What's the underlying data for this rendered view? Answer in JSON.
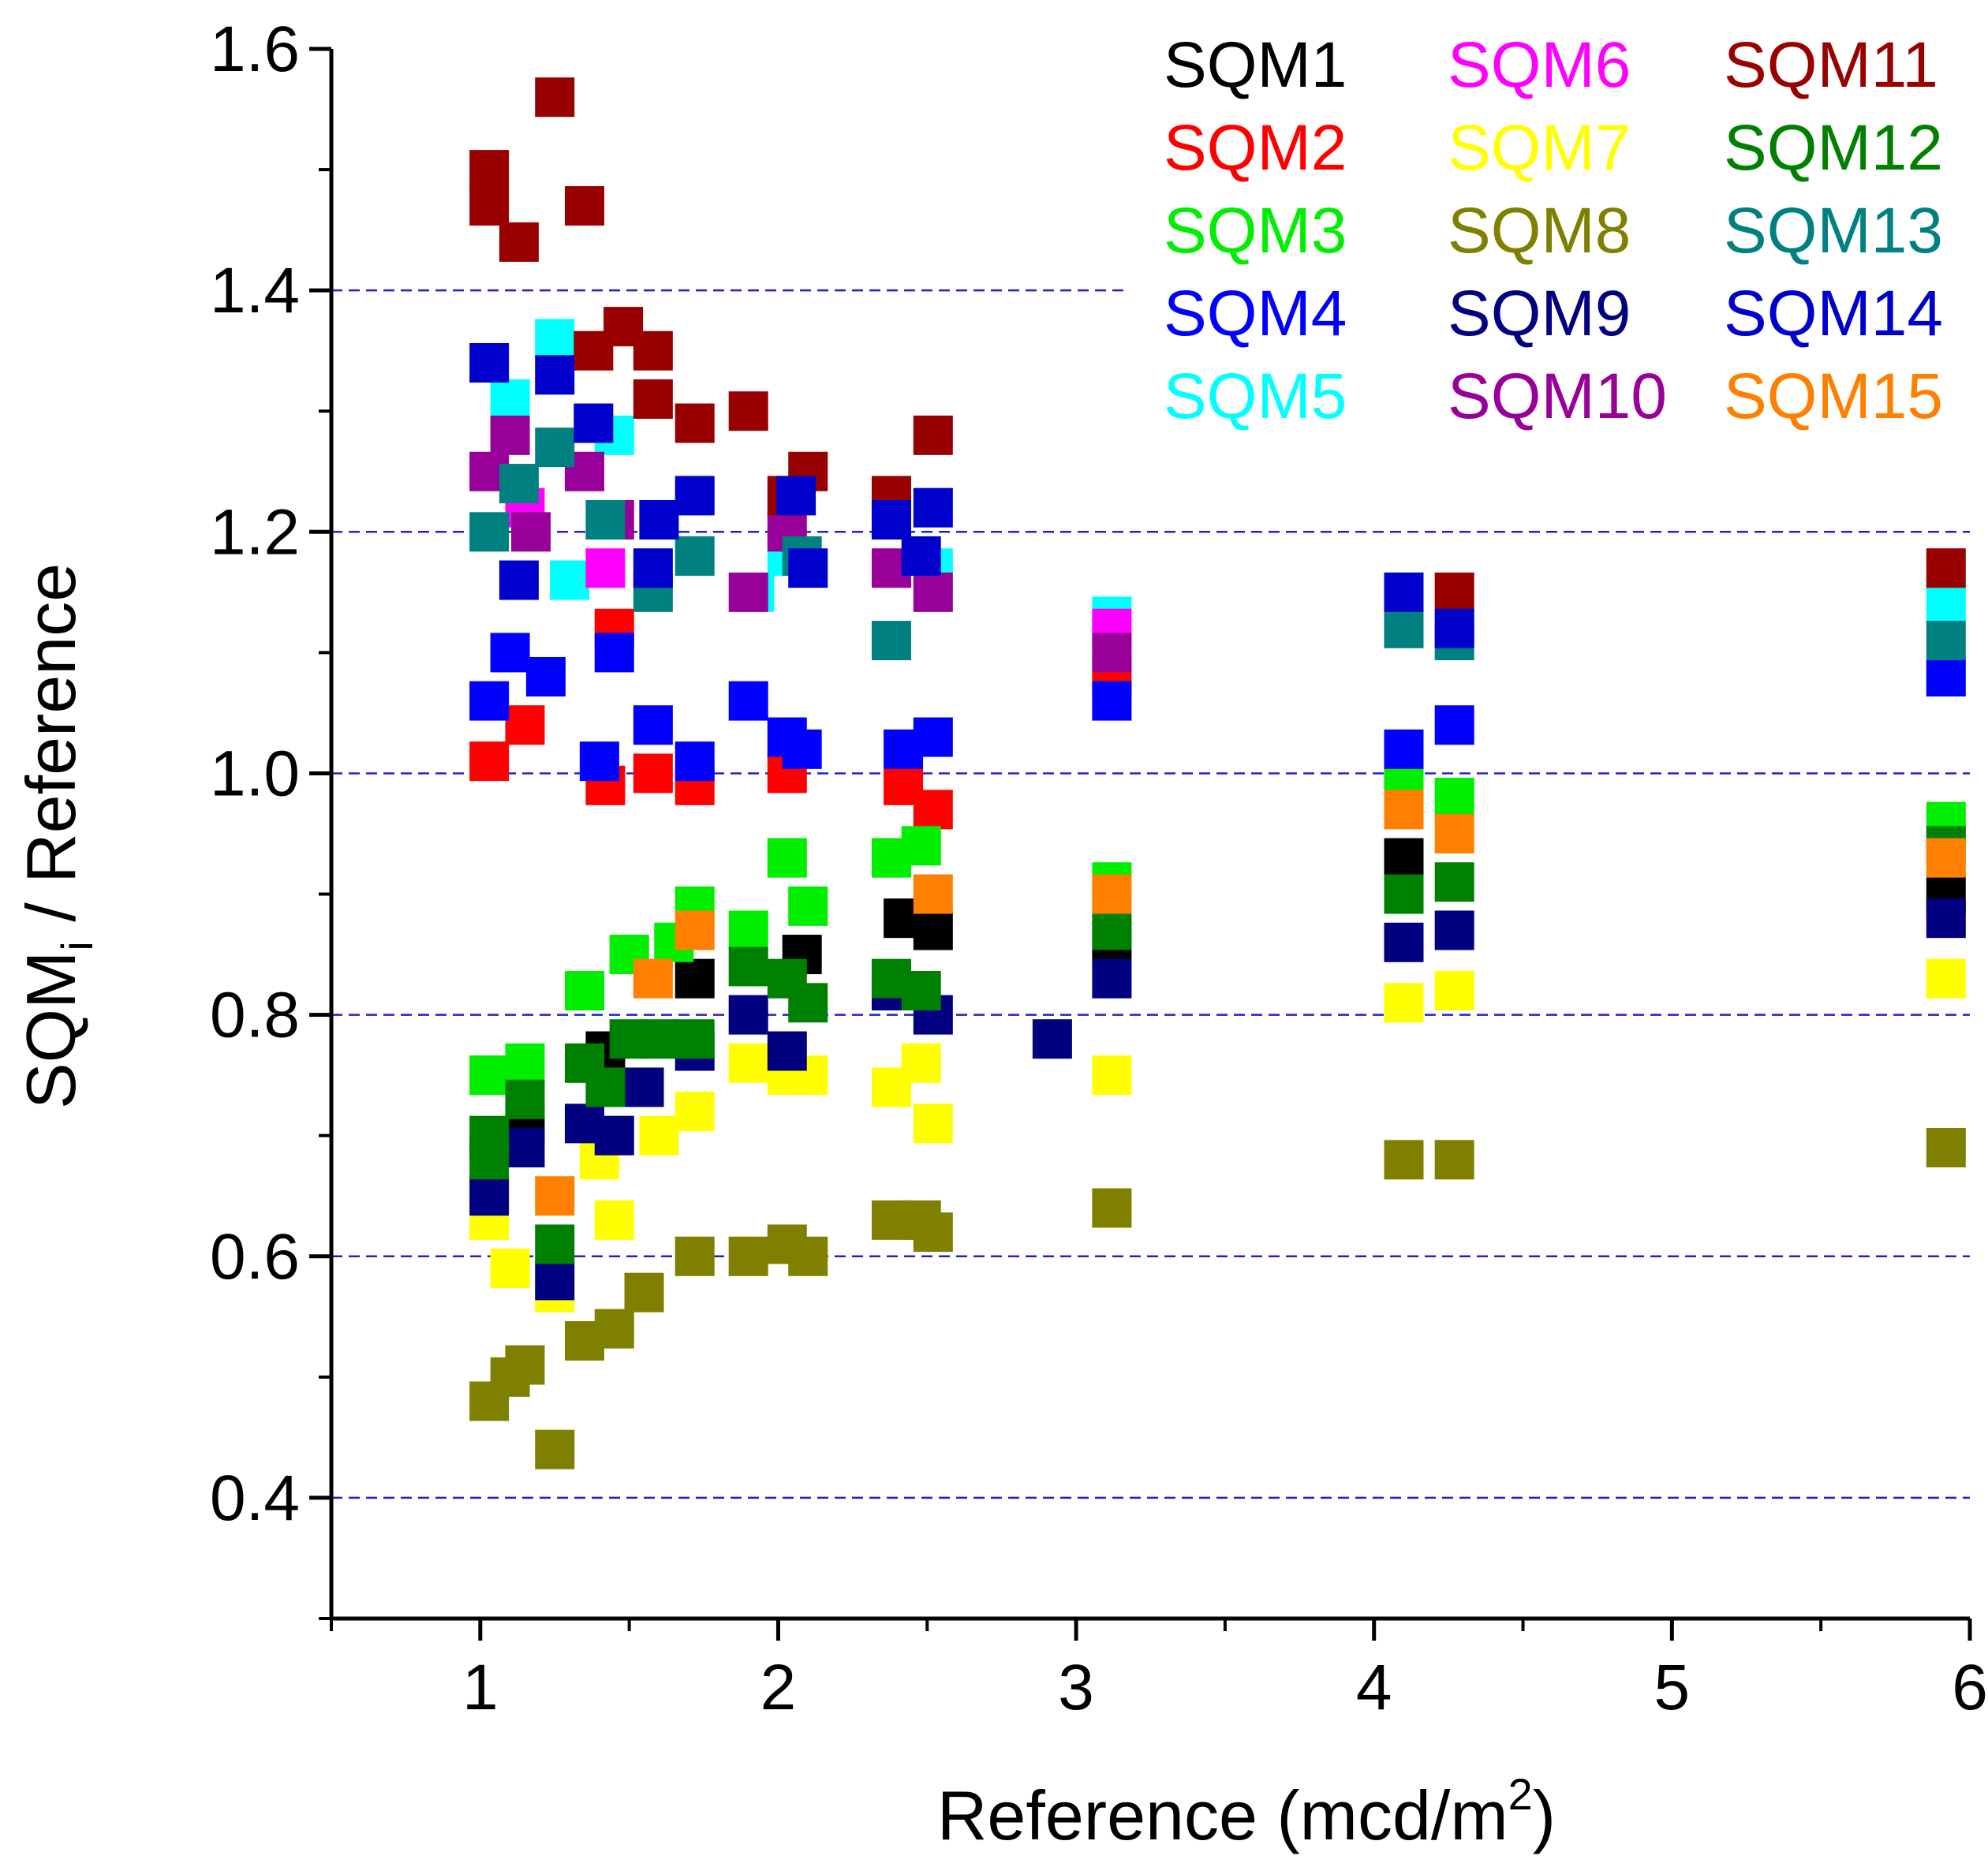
{
  "chart_data": {
    "type": "scatter",
    "title": "",
    "xlabel": "Reference (mcd/m",
    "xlabel_sup": "2",
    "xlabel_end": ")",
    "ylabel_main": "SQM",
    "ylabel_sub": "i",
    "ylabel_end": " / Reference",
    "xlim": [
      0.5,
      6.0
    ],
    "ylim": [
      0.3,
      1.6
    ],
    "xticks": [
      "1",
      "2",
      "3",
      "4",
      "5",
      "6"
    ],
    "yticks": [
      "0.4",
      "0.6",
      "0.8",
      "1.0",
      "1.2",
      "1.4",
      "1.6"
    ],
    "grid_y": [
      0.4,
      0.6,
      0.8,
      1.0,
      1.2,
      1.4
    ],
    "grid_color": "#2020d0",
    "legend_position": "top-right",
    "series": [
      {
        "name": "SQM1",
        "color": "#000000",
        "points": [
          [
            1.15,
            0.71
          ],
          [
            1.42,
            0.77
          ],
          [
            1.72,
            0.83
          ],
          [
            2.08,
            0.85
          ],
          [
            2.42,
            0.88
          ],
          [
            2.52,
            0.87
          ],
          [
            3.12,
            0.86
          ],
          [
            4.1,
            0.93
          ],
          [
            5.92,
            0.9
          ]
        ]
      },
      {
        "name": "SQM2",
        "color": "#ff0000",
        "points": [
          [
            1.03,
            1.01
          ],
          [
            1.15,
            1.04
          ],
          [
            1.42,
            0.99
          ],
          [
            1.58,
            1.0
          ],
          [
            1.72,
            0.99
          ],
          [
            2.03,
            1.0
          ],
          [
            2.42,
            0.99
          ],
          [
            2.52,
            0.97
          ],
          [
            3.12,
            1.08
          ],
          [
            4.1,
            1.0
          ],
          [
            1.45,
            1.12
          ]
        ]
      },
      {
        "name": "SQM3",
        "color": "#00ee00",
        "points": [
          [
            1.03,
            0.75
          ],
          [
            1.15,
            0.76
          ],
          [
            1.35,
            0.82
          ],
          [
            1.5,
            0.85
          ],
          [
            1.65,
            0.86
          ],
          [
            1.72,
            0.89
          ],
          [
            1.9,
            0.87
          ],
          [
            2.03,
            0.93
          ],
          [
            2.1,
            0.89
          ],
          [
            2.38,
            0.93
          ],
          [
            2.48,
            0.94
          ],
          [
            3.12,
            0.91
          ],
          [
            4.1,
            0.99
          ],
          [
            4.27,
            0.98
          ],
          [
            5.92,
            0.96
          ]
        ]
      },
      {
        "name": "SQM4",
        "color": "#0000ff",
        "points": [
          [
            1.03,
            1.06
          ],
          [
            1.1,
            1.1
          ],
          [
            1.22,
            1.08
          ],
          [
            1.4,
            1.01
          ],
          [
            1.45,
            1.1
          ],
          [
            1.58,
            1.04
          ],
          [
            1.72,
            1.01
          ],
          [
            1.9,
            1.06
          ],
          [
            2.03,
            1.03
          ],
          [
            2.08,
            1.02
          ],
          [
            2.42,
            1.02
          ],
          [
            2.52,
            1.03
          ],
          [
            3.12,
            1.06
          ],
          [
            4.1,
            1.02
          ],
          [
            4.27,
            1.04
          ],
          [
            5.92,
            1.08
          ]
        ]
      },
      {
        "name": "SQM5",
        "color": "#00ffff",
        "points": [
          [
            1.1,
            1.31
          ],
          [
            1.25,
            1.36
          ],
          [
            1.45,
            1.28
          ],
          [
            1.3,
            1.16
          ],
          [
            1.92,
            1.15
          ],
          [
            2.03,
            1.18
          ],
          [
            2.52,
            1.17
          ],
          [
            3.12,
            1.13
          ],
          [
            4.1,
            1.15
          ],
          [
            5.92,
            1.14
          ]
        ]
      },
      {
        "name": "SQM6",
        "color": "#ff00ff",
        "points": [
          [
            1.15,
            1.22
          ],
          [
            1.42,
            1.17
          ],
          [
            3.12,
            1.12
          ]
        ]
      },
      {
        "name": "SQM7",
        "color": "#ffff00",
        "points": [
          [
            1.03,
            0.63
          ],
          [
            1.1,
            0.59
          ],
          [
            1.25,
            0.57
          ],
          [
            1.4,
            0.68
          ],
          [
            1.45,
            0.63
          ],
          [
            1.6,
            0.7
          ],
          [
            1.72,
            0.72
          ],
          [
            1.9,
            0.76
          ],
          [
            2.03,
            0.75
          ],
          [
            2.1,
            0.75
          ],
          [
            2.38,
            0.74
          ],
          [
            2.48,
            0.76
          ],
          [
            2.52,
            0.71
          ],
          [
            3.12,
            0.75
          ],
          [
            4.1,
            0.81
          ],
          [
            4.27,
            0.82
          ],
          [
            5.92,
            0.83
          ]
        ]
      },
      {
        "name": "SQM8",
        "color": "#808000",
        "points": [
          [
            1.03,
            0.48
          ],
          [
            1.1,
            0.5
          ],
          [
            1.15,
            0.51
          ],
          [
            1.25,
            0.44
          ],
          [
            1.35,
            0.53
          ],
          [
            1.45,
            0.54
          ],
          [
            1.55,
            0.57
          ],
          [
            1.72,
            0.6
          ],
          [
            1.9,
            0.6
          ],
          [
            2.03,
            0.61
          ],
          [
            2.1,
            0.6
          ],
          [
            2.38,
            0.63
          ],
          [
            2.48,
            0.63
          ],
          [
            2.52,
            0.62
          ],
          [
            3.12,
            0.64
          ],
          [
            4.1,
            0.68
          ],
          [
            4.27,
            0.68
          ],
          [
            5.92,
            0.69
          ]
        ]
      },
      {
        "name": "SQM9",
        "color": "#000080",
        "points": [
          [
            1.03,
            0.65
          ],
          [
            1.15,
            0.69
          ],
          [
            1.25,
            0.58
          ],
          [
            1.35,
            0.71
          ],
          [
            1.45,
            0.7
          ],
          [
            1.55,
            0.74
          ],
          [
            1.72,
            0.77
          ],
          [
            1.9,
            0.8
          ],
          [
            2.03,
            0.77
          ],
          [
            2.38,
            0.82
          ],
          [
            2.52,
            0.8
          ],
          [
            2.92,
            0.78
          ],
          [
            3.12,
            0.83
          ],
          [
            4.1,
            0.86
          ],
          [
            4.27,
            0.87
          ],
          [
            5.92,
            0.88
          ]
        ]
      },
      {
        "name": "SQM10",
        "color": "#990099",
        "points": [
          [
            1.03,
            1.25
          ],
          [
            1.1,
            1.28
          ],
          [
            1.17,
            1.2
          ],
          [
            1.35,
            1.25
          ],
          [
            1.45,
            1.21
          ],
          [
            1.9,
            1.15
          ],
          [
            2.03,
            1.2
          ],
          [
            2.38,
            1.17
          ],
          [
            2.52,
            1.15
          ],
          [
            3.12,
            1.1
          ]
        ]
      },
      {
        "name": "SQM11",
        "color": "#990000",
        "points": [
          [
            1.03,
            1.5
          ],
          [
            1.03,
            1.47
          ],
          [
            1.13,
            1.44
          ],
          [
            1.25,
            1.56
          ],
          [
            1.35,
            1.47
          ],
          [
            1.38,
            1.35
          ],
          [
            1.48,
            1.37
          ],
          [
            1.58,
            1.35
          ],
          [
            1.58,
            1.31
          ],
          [
            1.72,
            1.29
          ],
          [
            1.9,
            1.3
          ],
          [
            2.03,
            1.23
          ],
          [
            2.1,
            1.25
          ],
          [
            2.38,
            1.23
          ],
          [
            2.52,
            1.28
          ],
          [
            4.27,
            1.15
          ],
          [
            5.92,
            1.17
          ]
        ]
      },
      {
        "name": "SQM12",
        "color": "#008000",
        "points": [
          [
            1.03,
            0.7
          ],
          [
            1.03,
            0.68
          ],
          [
            1.15,
            0.73
          ],
          [
            1.25,
            0.61
          ],
          [
            1.35,
            0.76
          ],
          [
            1.42,
            0.74
          ],
          [
            1.5,
            0.78
          ],
          [
            1.6,
            0.78
          ],
          [
            1.72,
            0.78
          ],
          [
            1.9,
            0.84
          ],
          [
            2.03,
            0.83
          ],
          [
            2.1,
            0.81
          ],
          [
            2.38,
            0.83
          ],
          [
            2.48,
            0.82
          ],
          [
            3.12,
            0.87
          ],
          [
            4.1,
            0.9
          ],
          [
            4.27,
            0.91
          ],
          [
            5.92,
            0.94
          ]
        ]
      },
      {
        "name": "SQM13",
        "color": "#008080",
        "points": [
          [
            1.03,
            1.2
          ],
          [
            1.13,
            1.24
          ],
          [
            1.25,
            1.27
          ],
          [
            1.42,
            1.21
          ],
          [
            1.58,
            1.15
          ],
          [
            1.72,
            1.18
          ],
          [
            2.08,
            1.18
          ],
          [
            2.38,
            1.11
          ],
          [
            4.1,
            1.12
          ],
          [
            4.27,
            1.11
          ],
          [
            5.92,
            1.11
          ]
        ]
      },
      {
        "name": "SQM14",
        "color": "#0000cc",
        "points": [
          [
            1.03,
            1.34
          ],
          [
            1.13,
            1.16
          ],
          [
            1.25,
            1.33
          ],
          [
            1.38,
            1.29
          ],
          [
            1.58,
            1.17
          ],
          [
            1.6,
            1.21
          ],
          [
            1.72,
            1.23
          ],
          [
            2.06,
            1.23
          ],
          [
            2.1,
            1.17
          ],
          [
            2.38,
            1.21
          ],
          [
            2.48,
            1.18
          ],
          [
            2.52,
            1.22
          ],
          [
            4.1,
            1.15
          ],
          [
            4.27,
            1.12
          ]
        ]
      },
      {
        "name": "SQM15",
        "color": "#ff8000",
        "points": [
          [
            1.25,
            0.65
          ],
          [
            1.58,
            0.83
          ],
          [
            1.72,
            0.87
          ],
          [
            2.52,
            0.9
          ],
          [
            3.12,
            0.9
          ],
          [
            4.1,
            0.97
          ],
          [
            4.27,
            0.95
          ],
          [
            5.92,
            0.93
          ]
        ]
      }
    ]
  }
}
